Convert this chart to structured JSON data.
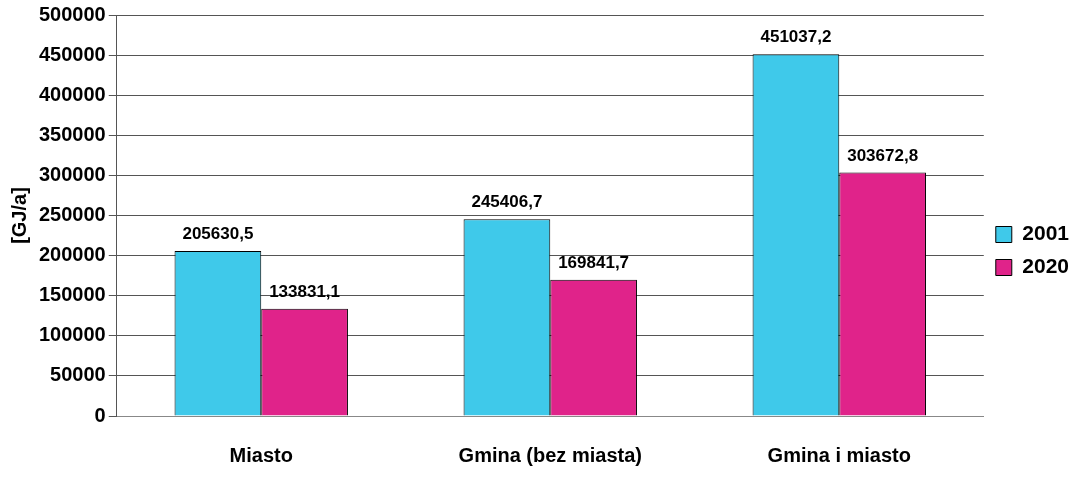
{
  "chart_data": {
    "type": "bar",
    "ylabel": "[GJ/a]",
    "categories": [
      "Miasto",
      "Gmina (bez miasta)",
      "Gmina i miasto"
    ],
    "series": [
      {
        "name": "2001",
        "color": "#3fc9ea",
        "values": [
          205630.5,
          245406.7,
          451037.2
        ],
        "value_labels": [
          "205630,5",
          "245406,7",
          "451037,2"
        ]
      },
      {
        "name": "2020",
        "color": "#e0238a",
        "values": [
          133831.1,
          169841.7,
          303672.8
        ],
        "value_labels": [
          "133831,1",
          "169841,7",
          "303672,8"
        ]
      }
    ],
    "ylim": [
      0,
      500000
    ],
    "yticks": [
      0,
      50000,
      100000,
      150000,
      200000,
      250000,
      300000,
      350000,
      400000,
      450000,
      500000
    ],
    "grid": "y",
    "legend": "right"
  }
}
